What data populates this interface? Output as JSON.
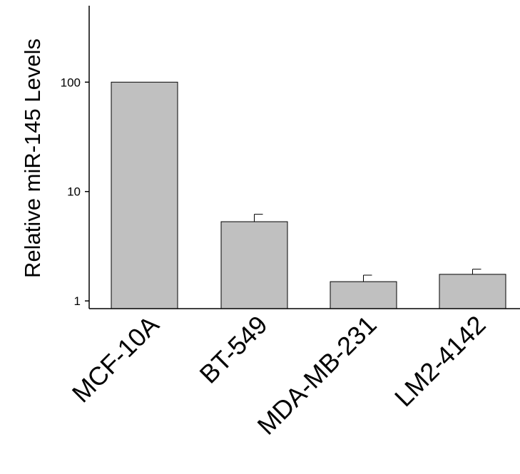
{
  "chart_data": {
    "type": "bar",
    "title": "",
    "xlabel": "",
    "ylabel": "Relative miR-145 Levels",
    "yscale": "log",
    "ylim": [
      0.85,
      500
    ],
    "yticks": [
      1,
      10,
      100
    ],
    "ytick_labels": [
      "1",
      "10",
      "100"
    ],
    "categories": [
      "MCF-10A",
      "BT-549",
      "MDA-MB-231",
      "LM2-4142"
    ],
    "values": [
      100,
      5.3,
      1.5,
      1.75
    ],
    "errors": [
      0,
      0.9,
      0.22,
      0.2
    ],
    "bar_color": "#c0c0c0",
    "edge_color": "#000000",
    "grid": false,
    "legend": "none"
  }
}
